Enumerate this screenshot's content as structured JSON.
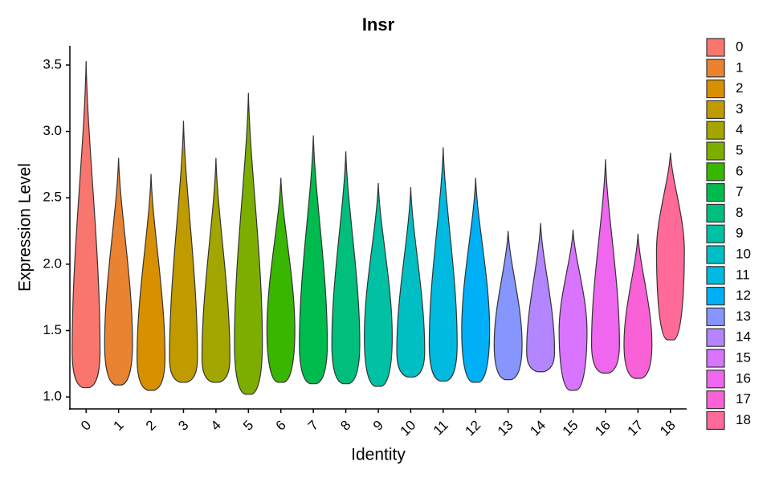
{
  "chart_data": {
    "type": "violin",
    "title": "Insr",
    "x_label": "Identity",
    "y_label": "Expression Level",
    "ylim": [
      0.91,
      3.645
    ],
    "yticks": [
      {
        "value": 1,
        "label": "1.0"
      },
      {
        "value": 1.5,
        "label": "1.5"
      },
      {
        "value": 2,
        "label": "2.0"
      },
      {
        "value": 2.5,
        "label": "2.5"
      },
      {
        "value": 3,
        "label": "3.0"
      },
      {
        "value": 3.5,
        "label": "3.5"
      }
    ],
    "series": [
      {
        "name": "0",
        "color": "#F8766D",
        "min": 1.07,
        "peak": 1.35,
        "max": 3.53
      },
      {
        "name": "1",
        "color": "#EA8331",
        "min": 1.09,
        "peak": 1.4,
        "max": 2.8
      },
      {
        "name": "2",
        "color": "#D89000",
        "min": 1.05,
        "peak": 1.3,
        "max": 2.68
      },
      {
        "name": "3",
        "color": "#C09B00",
        "min": 1.11,
        "peak": 1.3,
        "max": 3.08
      },
      {
        "name": "4",
        "color": "#A3A500",
        "min": 1.11,
        "peak": 1.3,
        "max": 2.8
      },
      {
        "name": "5",
        "color": "#7CAE00",
        "min": 1.02,
        "peak": 1.4,
        "max": 3.29
      },
      {
        "name": "6",
        "color": "#39B600",
        "min": 1.11,
        "peak": 1.5,
        "max": 2.65
      },
      {
        "name": "7",
        "color": "#00BB4E",
        "min": 1.1,
        "peak": 1.4,
        "max": 2.97
      },
      {
        "name": "8",
        "color": "#00BF7D",
        "min": 1.1,
        "peak": 1.4,
        "max": 2.85
      },
      {
        "name": "9",
        "color": "#00C1A3",
        "min": 1.08,
        "peak": 1.45,
        "max": 2.61
      },
      {
        "name": "10",
        "color": "#00BFC4",
        "min": 1.15,
        "peak": 1.35,
        "max": 2.58
      },
      {
        "name": "11",
        "color": "#00BAE0",
        "min": 1.12,
        "peak": 1.4,
        "max": 2.88
      },
      {
        "name": "12",
        "color": "#00B0F6",
        "min": 1.11,
        "peak": 1.5,
        "max": 2.65
      },
      {
        "name": "13",
        "color": "#8795FF",
        "min": 1.13,
        "peak": 1.4,
        "max": 2.25
      },
      {
        "name": "14",
        "color": "#B386FF",
        "min": 1.19,
        "peak": 1.35,
        "max": 2.31
      },
      {
        "name": "15",
        "color": "#D874FD",
        "min": 1.05,
        "peak": 1.5,
        "max": 2.26
      },
      {
        "name": "16",
        "color": "#EE67EE",
        "min": 1.18,
        "peak": 1.4,
        "max": 2.79
      },
      {
        "name": "17",
        "color": "#FB61D7",
        "min": 1.14,
        "peak": 1.4,
        "max": 2.23
      },
      {
        "name": "18",
        "color": "#FF6A98",
        "min": 1.43,
        "peak": 2.1,
        "max": 2.84
      }
    ]
  }
}
